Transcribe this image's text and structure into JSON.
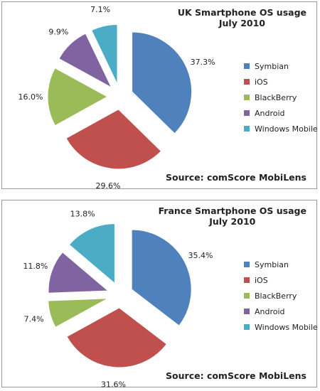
{
  "colors": {
    "Symbian": "#4f81bd",
    "iOS": "#c0504d",
    "BlackBerry": "#9bbb59",
    "Android": "#8064a2",
    "Windows Mobile": "#4bacc6"
  },
  "chart_data": [
    {
      "type": "pie",
      "title_lines": [
        "UK Smartphone OS usage",
        "July 2010"
      ],
      "source": "Source: comScore MobiLens",
      "categories": [
        "Symbian",
        "iOS",
        "BlackBerry",
        "Android",
        "Windows Mobile"
      ],
      "values": [
        37.3,
        29.6,
        16.0,
        9.9,
        7.1
      ],
      "data_labels": [
        "37.3%",
        "29.6%",
        "16.0%",
        "9.9%",
        "7.1%"
      ],
      "exploded": true,
      "legend_position": "right"
    },
    {
      "type": "pie",
      "title_lines": [
        "France Smartphone OS usage",
        "July 2010"
      ],
      "source": "Source: comScore MobiLens",
      "categories": [
        "Symbian",
        "iOS",
        "BlackBerry",
        "Android",
        "Windows Mobile"
      ],
      "values": [
        35.4,
        31.6,
        7.4,
        11.8,
        13.8
      ],
      "data_labels": [
        "35.4%",
        "31.6%",
        "7.4%",
        "11.8%",
        "13.8%"
      ],
      "exploded": true,
      "legend_position": "right"
    }
  ]
}
